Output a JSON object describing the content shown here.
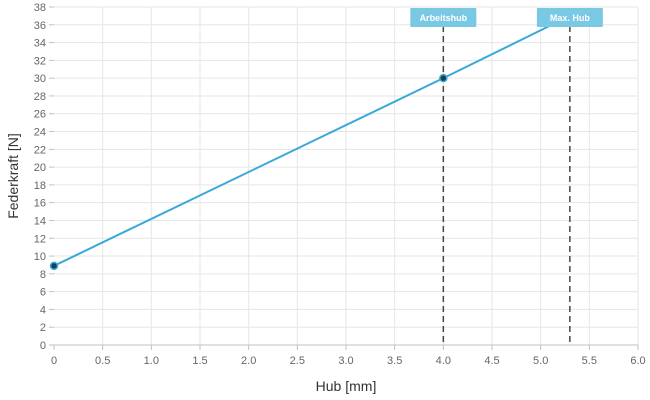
{
  "chart_data": {
    "type": "line",
    "title": "",
    "xlabel": "Hub [mm]",
    "ylabel": "Federkraft [N]",
    "xlim": [
      0,
      6.0
    ],
    "ylim": [
      0,
      38
    ],
    "grid": true,
    "x_ticks": [
      "0",
      "0.5",
      "1.0",
      "1.5",
      "2.0",
      "2.5",
      "3.0",
      "3.5",
      "4.0",
      "4.5",
      "5.0",
      "5.5",
      "6.0"
    ],
    "y_ticks": [
      "0",
      "2",
      "4",
      "6",
      "8",
      "10",
      "12",
      "14",
      "16",
      "18",
      "20",
      "22",
      "24",
      "26",
      "28",
      "30",
      "32",
      "34",
      "36",
      "38"
    ],
    "series": [
      {
        "x": [
          0,
          4.0,
          5.3
        ],
        "y": [
          8.9,
          30,
          37
        ],
        "color": "#3aa8d8"
      }
    ],
    "markers": [
      {
        "label": "Arbeitshub",
        "x": 4.0,
        "color": "#79c8e4"
      },
      {
        "label": "Max. Hub",
        "x": 5.3,
        "color": "#79c8e4"
      }
    ]
  }
}
